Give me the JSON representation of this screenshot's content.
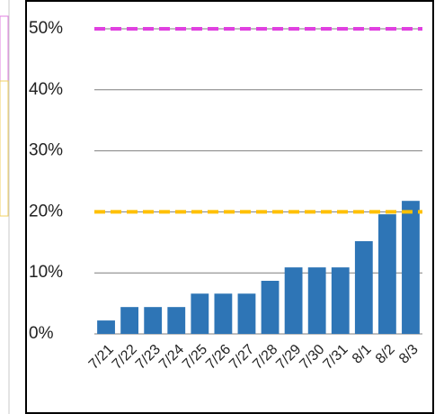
{
  "chart_data": {
    "type": "bar",
    "categories": [
      "7/21",
      "7/22",
      "7/23",
      "7/24",
      "7/25",
      "7/26",
      "7/27",
      "7/28",
      "7/29",
      "7/30",
      "7/31",
      "8/1",
      "8/2",
      "8/3"
    ],
    "values": [
      2.2,
      4.4,
      4.4,
      4.4,
      6.6,
      6.6,
      6.6,
      8.7,
      10.9,
      10.9,
      10.9,
      15.2,
      19.6,
      21.8
    ],
    "color": "#2e75b6",
    "ylim": [
      0,
      50
    ],
    "yticks": [
      {
        "value": 0,
        "label": "0%"
      },
      {
        "value": 10,
        "label": "10%"
      },
      {
        "value": 20,
        "label": "20%"
      },
      {
        "value": 30,
        "label": "30%"
      },
      {
        "value": 40,
        "label": "40%"
      },
      {
        "value": 50,
        "label": "50%"
      }
    ],
    "grid": true,
    "reference_lines": [
      {
        "value": 50,
        "color": "#e040e0"
      },
      {
        "value": 20,
        "color": "#ffc000"
      }
    ]
  }
}
